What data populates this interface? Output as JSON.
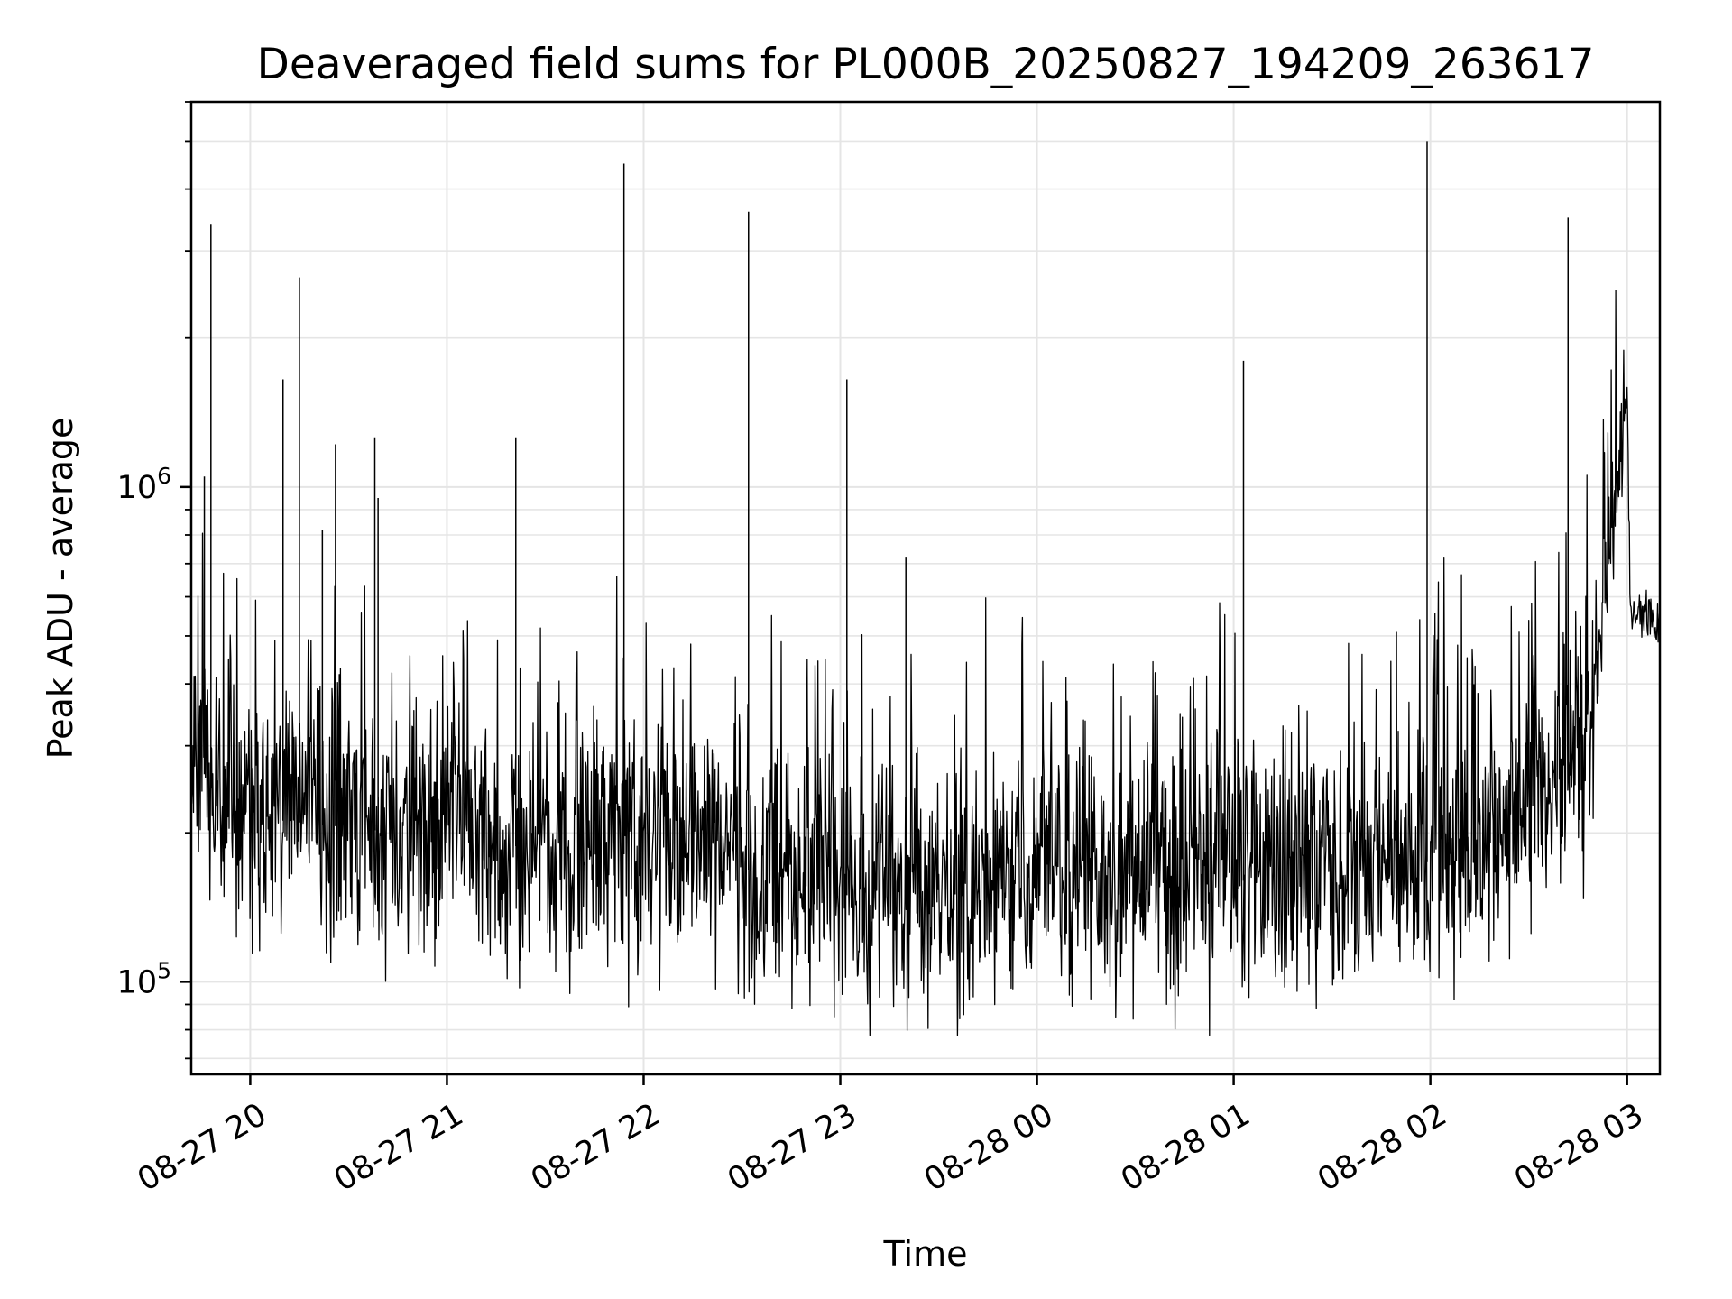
{
  "chart_data": {
    "type": "line",
    "title": "Deaveraged field sums for PL000B_20250827_194209_263617",
    "xlabel": "Time",
    "ylabel": "Peak ADU - average",
    "yscale": "log",
    "ylim": [
      65000,
      6000000
    ],
    "xlim": [
      "2025-08-27 19:42",
      "2025-08-28 03:10"
    ],
    "grid": true,
    "line_color": "#000000",
    "grid_color": "#e5e5e5",
    "x_ticks": [
      {
        "value": "2025-08-27 20:00",
        "label": "08-27 20"
      },
      {
        "value": "2025-08-27 21:00",
        "label": "08-27 21"
      },
      {
        "value": "2025-08-27 22:00",
        "label": "08-27 22"
      },
      {
        "value": "2025-08-27 23:00",
        "label": "08-27 23"
      },
      {
        "value": "2025-08-28 00:00",
        "label": "08-28 00"
      },
      {
        "value": "2025-08-28 01:00",
        "label": "08-28 01"
      },
      {
        "value": "2025-08-28 02:00",
        "label": "08-28 02"
      },
      {
        "value": "2025-08-28 03:00",
        "label": "08-28 03"
      }
    ],
    "y_ticks": [
      {
        "value": 100000,
        "base": "10",
        "exponent": "5"
      },
      {
        "value": 1000000,
        "base": "10",
        "exponent": "6"
      }
    ],
    "baseline": [
      {
        "x": "2025-08-27 19:42",
        "y": 300000
      },
      {
        "x": "2025-08-27 19:50",
        "y": 230000
      },
      {
        "x": "2025-08-27 20:00",
        "y": 215000
      },
      {
        "x": "2025-08-27 20:30",
        "y": 205000
      },
      {
        "x": "2025-08-27 21:00",
        "y": 195000
      },
      {
        "x": "2025-08-27 21:30",
        "y": 185000
      },
      {
        "x": "2025-08-27 22:00",
        "y": 180000
      },
      {
        "x": "2025-08-27 22:30",
        "y": 170000
      },
      {
        "x": "2025-08-27 23:00",
        "y": 150000
      },
      {
        "x": "2025-08-27 23:30",
        "y": 145000
      },
      {
        "x": "2025-08-28 00:00",
        "y": 160000
      },
      {
        "x": "2025-08-28 00:30",
        "y": 160000
      },
      {
        "x": "2025-08-28 01:00",
        "y": 160000
      },
      {
        "x": "2025-08-28 01:30",
        "y": 160000
      },
      {
        "x": "2025-08-28 02:00",
        "y": 175000
      },
      {
        "x": "2025-08-28 02:20",
        "y": 195000
      },
      {
        "x": "2025-08-28 02:40",
        "y": 250000
      },
      {
        "x": "2025-08-28 02:46",
        "y": 290000
      },
      {
        "x": "2025-08-28 02:52",
        "y": 500000
      },
      {
        "x": "2025-08-28 02:58",
        "y": 1100000
      },
      {
        "x": "2025-08-28 03:00",
        "y": 1500000
      },
      {
        "x": "2025-08-28 03:01",
        "y": 560000
      },
      {
        "x": "2025-08-28 03:10",
        "y": 540000
      }
    ],
    "spikes": [
      {
        "x": "2025-08-27 19:46",
        "y": 1050000
      },
      {
        "x": "2025-08-27 19:48",
        "y": 3400000
      },
      {
        "x": "2025-08-27 20:10",
        "y": 1650000
      },
      {
        "x": "2025-08-27 20:15",
        "y": 2650000
      },
      {
        "x": "2025-08-27 20:22",
        "y": 820000
      },
      {
        "x": "2025-08-27 20:26",
        "y": 1220000
      },
      {
        "x": "2025-08-27 20:38",
        "y": 1260000
      },
      {
        "x": "2025-08-27 20:39",
        "y": 950000
      },
      {
        "x": "2025-08-27 21:21",
        "y": 1260000
      },
      {
        "x": "2025-08-27 21:54",
        "y": 4500000
      },
      {
        "x": "2025-08-27 22:32",
        "y": 3600000
      },
      {
        "x": "2025-08-27 23:02",
        "y": 1650000
      },
      {
        "x": "2025-08-27 23:20",
        "y": 720000
      },
      {
        "x": "2025-08-28 01:03",
        "y": 1800000
      },
      {
        "x": "2025-08-28 01:59",
        "y": 5000000
      },
      {
        "x": "2025-08-28 02:42",
        "y": 3500000
      }
    ]
  }
}
